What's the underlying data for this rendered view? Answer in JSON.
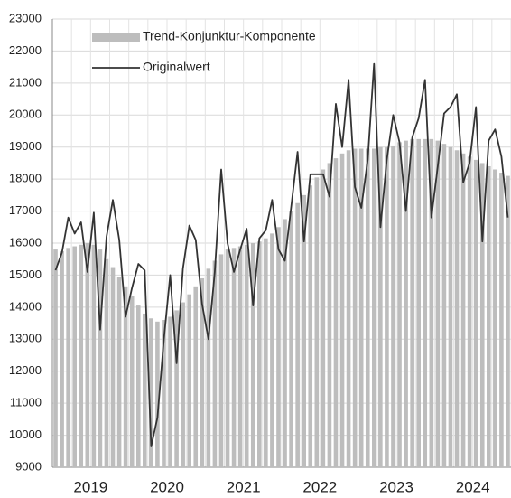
{
  "chart_data": {
    "type": "bar-line",
    "categories": [
      null,
      null,
      null,
      null,
      null,
      null,
      "2019",
      null,
      null,
      null,
      null,
      null,
      null,
      null,
      null,
      null,
      null,
      null,
      "2020",
      null,
      null,
      null,
      null,
      null,
      null,
      null,
      null,
      null,
      null,
      null,
      "2021",
      null,
      null,
      null,
      null,
      null,
      null,
      null,
      null,
      null,
      null,
      null,
      "2022",
      null,
      null,
      null,
      null,
      null,
      null,
      null,
      null,
      null,
      null,
      null,
      "2023",
      null,
      null,
      null,
      null,
      null,
      null,
      null,
      null,
      null,
      null,
      null,
      "2024",
      null,
      null,
      null,
      null,
      null
    ],
    "series": [
      {
        "name": "Trend-Konjunktur-Komponente",
        "kind": "bar",
        "color": "#bdbdbd",
        "values": [
          15800,
          15750,
          15850,
          15900,
          15950,
          16000,
          15950,
          15800,
          15500,
          15250,
          14950,
          14650,
          14350,
          14050,
          13800,
          13650,
          13550,
          13600,
          13700,
          13900,
          14150,
          14400,
          14650,
          14900,
          15200,
          15450,
          15650,
          15800,
          15850,
          15900,
          15950,
          16000,
          16050,
          16150,
          16300,
          16500,
          16750,
          17000,
          17250,
          17500,
          17800,
          18050,
          18300,
          18500,
          18650,
          18800,
          18900,
          18950,
          18950,
          18950,
          18950,
          19000,
          19000,
          19050,
          19150,
          19200,
          19250,
          19250,
          19250,
          19250,
          19200,
          19100,
          19000,
          18900,
          18800,
          18700,
          18600,
          18500,
          18400,
          18300,
          18200,
          18100
        ]
      },
      {
        "name": "Originalwert",
        "kind": "line",
        "color": "#333333",
        "values": [
          15150,
          15700,
          16800,
          16300,
          16650,
          15100,
          16950,
          13300,
          16200,
          17350,
          16100,
          13700,
          14600,
          15350,
          15150,
          9650,
          10550,
          13000,
          15000,
          12250,
          15200,
          16550,
          16100,
          14100,
          13000,
          15100,
          18300,
          16000,
          15100,
          15800,
          16450,
          14050,
          16150,
          16400,
          17350,
          15800,
          15450,
          17150,
          18850,
          16050,
          18150,
          18150,
          18150,
          17450,
          20350,
          19000,
          21100,
          17750,
          17100,
          18600,
          21600,
          16500,
          18600,
          20000,
          19150,
          17000,
          19300,
          19900,
          21100,
          16800,
          18400,
          20050,
          20250,
          20650,
          17900,
          18500,
          20250,
          16050,
          19200,
          19550,
          18700,
          16800
        ]
      }
    ],
    "ylim": [
      9000,
      23000
    ],
    "yticks": [
      9000,
      10000,
      11000,
      12000,
      13000,
      14000,
      15000,
      16000,
      17000,
      18000,
      19000,
      20000,
      21000,
      22000,
      23000
    ],
    "grid": true,
    "legend": "top-left"
  }
}
